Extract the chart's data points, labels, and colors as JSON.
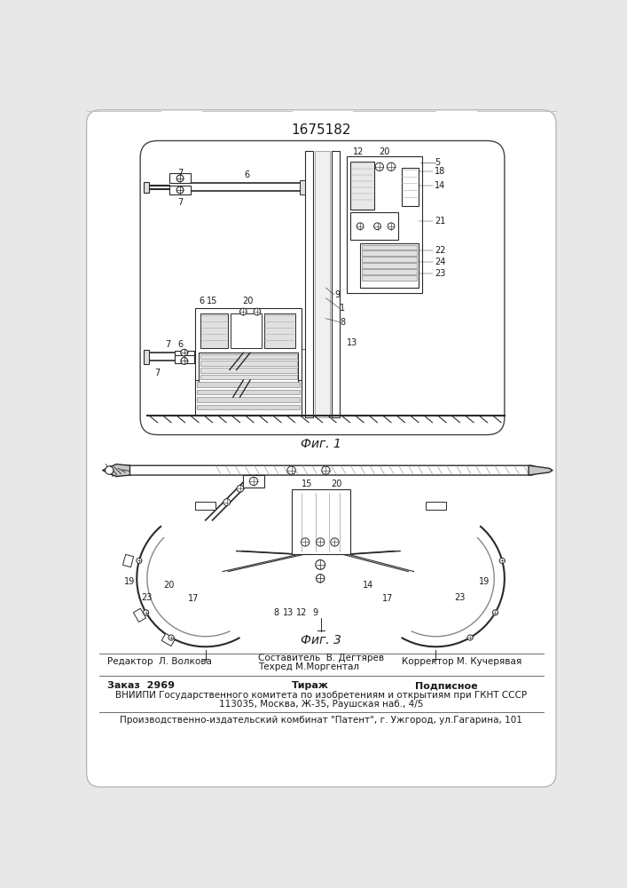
{
  "patent_number": "1675182",
  "fig1_caption": "Фиг. 1",
  "fig3_caption": "Фиг. 3",
  "editor_line": "Редактор  Л. Волкова",
  "composer_line1": "Составитель  В. Дегтярев",
  "composer_line2": "Техред М.Моргентал",
  "corrector_line": "Корректор М. Кучерявая",
  "order_line": "Заказ  2969",
  "tirazh_line": "Тираж",
  "podpisnoe_line": "Подписное",
  "vniipи_line": "ВНИИПИ Государственного комитета по изобретениям и открытиям при ГКНТ СССР",
  "address_line": "113035, Москва, Ж-35, Раушская наб., 4/5",
  "factory_line": "Производственно-издательский комбинат \"Патент\", г. Ужгород, ул.Гагарина, 101",
  "bg_color": "#ffffff",
  "line_color": "#2a2a2a",
  "text_color": "#1a1a1a",
  "border_color": "#888888",
  "page_bg": "#e8e8e8"
}
